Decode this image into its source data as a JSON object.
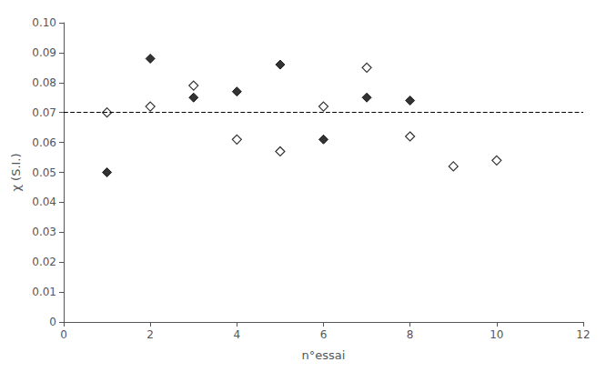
{
  "chart_data": {
    "type": "scatter",
    "xlabel": "n°essai",
    "ylabel": "χ (S.I.)",
    "xlim": [
      0,
      12
    ],
    "ylim": [
      0,
      0.1
    ],
    "xticks": [
      0,
      2,
      4,
      6,
      8,
      10,
      12
    ],
    "yticks": [
      0,
      0.01,
      0.02,
      0.03,
      0.04,
      0.05,
      0.06,
      0.07,
      0.08,
      0.09,
      {
        "value": 0.1,
        "label": "0.10"
      }
    ],
    "grid": false,
    "series": [
      {
        "x": [
          1,
          2,
          3,
          4,
          5,
          6,
          7,
          8
        ],
        "values": [
          0.05,
          0.088,
          0.075,
          0.077,
          0.086,
          0.061,
          0.075,
          0.074
        ],
        "marker": "diamond",
        "color": "#000000"
      },
      {
        "x": [
          1,
          2,
          3,
          4,
          5,
          6,
          7,
          8,
          9,
          10
        ],
        "values": [
          0.07,
          0.072,
          0.079,
          0.061,
          0.057,
          0.072,
          0.085,
          0.062,
          0.052,
          0.054
        ],
        "marker": "open_diamond",
        "color": "#000000"
      }
    ],
    "lines": [
      {
        "y": 0.07,
        "line_style": "dashed",
        "color": "#000000"
      }
    ]
  }
}
